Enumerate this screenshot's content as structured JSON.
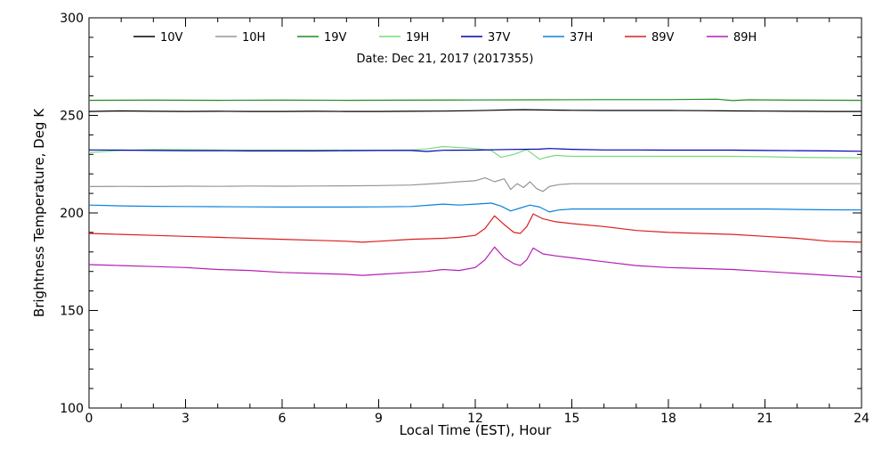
{
  "chart_data": {
    "type": "line",
    "subtitle": "Date: Dec 21, 2017 (2017355)",
    "xlabel": "Local Time (EST), Hour",
    "ylabel": "Brightness Temperature, Deg K",
    "xlim": [
      0,
      24
    ],
    "ylim": [
      100,
      300
    ],
    "xticks": [
      0,
      3,
      6,
      9,
      12,
      15,
      18,
      21,
      24
    ],
    "yticks": [
      100,
      150,
      200,
      250,
      300
    ],
    "grid": false,
    "legend_position": "top",
    "series": [
      {
        "name": "10V",
        "color": "#000000",
        "x": [
          0,
          1,
          2,
          3,
          4,
          5,
          6,
          7,
          8,
          9,
          10,
          11,
          12,
          12.5,
          13,
          13.5,
          14,
          15,
          16,
          17,
          18,
          19,
          20,
          21,
          22,
          23,
          24
        ],
        "y": [
          252.0,
          252.3,
          252.1,
          252.0,
          252.1,
          252.0,
          252.0,
          252.1,
          252.0,
          252.0,
          252.1,
          252.2,
          252.4,
          252.6,
          252.8,
          252.9,
          252.8,
          252.6,
          252.5,
          252.5,
          252.5,
          252.4,
          252.3,
          252.2,
          252.1,
          252.0,
          252.0
        ]
      },
      {
        "name": "10H",
        "color": "#969696",
        "x": [
          0,
          1,
          2,
          3,
          4,
          5,
          6,
          7,
          8,
          9,
          10,
          10.5,
          11,
          11.5,
          12,
          12.3,
          12.6,
          12.9,
          13.1,
          13.3,
          13.5,
          13.7,
          13.9,
          14.1,
          14.3,
          14.6,
          15,
          16,
          17,
          18,
          19,
          20,
          21,
          22,
          23,
          24
        ],
        "y": [
          213.5,
          213.6,
          213.5,
          213.7,
          213.6,
          213.8,
          213.7,
          213.8,
          213.9,
          214.0,
          214.3,
          214.8,
          215.3,
          216.0,
          216.5,
          218.0,
          216.0,
          217.5,
          212.0,
          215.0,
          213.0,
          216.0,
          212.5,
          211.0,
          213.5,
          214.5,
          215.0,
          215.0,
          215.0,
          215.0,
          215.0,
          215.0,
          215.0,
          215.0,
          215.0,
          215.0
        ]
      },
      {
        "name": "19V",
        "color": "#1e8c1e",
        "x": [
          0,
          2,
          4,
          6,
          8,
          10,
          12,
          14,
          16,
          18,
          19.5,
          20,
          20.5,
          22,
          24
        ],
        "y": [
          257.7,
          257.8,
          257.7,
          257.8,
          257.7,
          257.8,
          257.9,
          258.0,
          258.1,
          258.1,
          258.3,
          257.6,
          258.0,
          257.8,
          257.7
        ]
      },
      {
        "name": "19H",
        "color": "#78dc78",
        "x": [
          0,
          1,
          2,
          3,
          4,
          5,
          6,
          7,
          8,
          9,
          10,
          10.5,
          11,
          11.5,
          12,
          12.5,
          12.8,
          13.2,
          13.6,
          14,
          14.2,
          14.5,
          15,
          16,
          17,
          18,
          19,
          20,
          21,
          22,
          23,
          24
        ],
        "y": [
          231.0,
          232.0,
          232.5,
          232.4,
          232.3,
          232.2,
          232.3,
          232.2,
          232.2,
          232.1,
          232.3,
          232.8,
          234.0,
          233.5,
          233.0,
          232.0,
          228.5,
          230.0,
          232.5,
          227.5,
          228.5,
          229.5,
          229.0,
          229.0,
          229.0,
          229.0,
          229.0,
          229.0,
          228.8,
          228.5,
          228.3,
          228.2
        ]
      },
      {
        "name": "37V",
        "color": "#0000b4",
        "x": [
          0,
          1,
          2,
          3,
          4,
          5,
          6,
          7,
          8,
          9,
          10,
          10.5,
          11,
          12,
          13,
          14,
          14.3,
          15,
          16,
          17,
          18,
          19,
          20,
          21,
          22,
          23,
          24
        ],
        "y": [
          232.3,
          232.2,
          232.0,
          231.9,
          231.9,
          231.8,
          231.8,
          231.8,
          231.9,
          232.0,
          232.0,
          231.5,
          232.1,
          232.2,
          232.5,
          232.7,
          233.0,
          232.6,
          232.3,
          232.3,
          232.2,
          232.2,
          232.2,
          232.0,
          231.9,
          231.8,
          231.6
        ]
      },
      {
        "name": "37H",
        "color": "#0a82dc",
        "x": [
          0,
          1,
          2,
          3,
          4,
          5,
          6,
          7,
          8,
          9,
          10,
          10.5,
          11,
          11.5,
          12,
          12.5,
          12.8,
          13.1,
          13.4,
          13.7,
          14,
          14.3,
          14.6,
          15,
          16,
          17,
          18,
          19,
          20,
          21,
          22,
          23,
          24
        ],
        "y": [
          204.0,
          203.6,
          203.4,
          203.3,
          203.2,
          203.1,
          203.0,
          203.0,
          203.0,
          203.1,
          203.3,
          203.9,
          204.5,
          204.0,
          204.5,
          205.0,
          203.5,
          201.0,
          202.5,
          204.0,
          203.0,
          200.5,
          201.5,
          202.0,
          202.0,
          202.0,
          202.0,
          202.0,
          202.0,
          202.0,
          201.8,
          201.6,
          201.5
        ]
      },
      {
        "name": "89V",
        "color": "#dc1e1e",
        "x": [
          0,
          1,
          2,
          3,
          4,
          5,
          6,
          7,
          8,
          8.5,
          9,
          10,
          11,
          11.5,
          12,
          12.3,
          12.6,
          12.9,
          13.2,
          13.4,
          13.6,
          13.8,
          14.1,
          14.5,
          15,
          16,
          17,
          18,
          19,
          20,
          21,
          22,
          23,
          24
        ],
        "y": [
          189.5,
          189.0,
          188.5,
          188.0,
          187.5,
          187.0,
          186.5,
          186.0,
          185.5,
          185.0,
          185.5,
          186.5,
          187.0,
          187.5,
          188.5,
          192.0,
          198.5,
          194.0,
          190.0,
          189.5,
          193.0,
          199.5,
          197.0,
          195.5,
          194.5,
          193.0,
          191.0,
          190.0,
          189.5,
          189.0,
          188.0,
          187.0,
          185.5,
          185.0
        ]
      },
      {
        "name": "89H",
        "color": "#b41eb4",
        "x": [
          0,
          1,
          2,
          3,
          4,
          5,
          6,
          7,
          8,
          8.5,
          9,
          10,
          10.5,
          11,
          11.5,
          12,
          12.3,
          12.6,
          12.9,
          13.2,
          13.4,
          13.6,
          13.8,
          14.1,
          14.5,
          15,
          16,
          17,
          18,
          19,
          20,
          21,
          22,
          23,
          24
        ],
        "y": [
          173.5,
          173.0,
          172.5,
          172.0,
          171.0,
          170.5,
          169.5,
          169.0,
          168.5,
          168.0,
          168.5,
          169.5,
          170.0,
          171.0,
          170.5,
          172.0,
          176.0,
          182.5,
          177.0,
          174.0,
          173.0,
          176.0,
          182.0,
          179.0,
          178.0,
          177.0,
          175.0,
          173.0,
          172.0,
          171.5,
          171.0,
          170.0,
          169.0,
          168.0,
          167.0
        ]
      }
    ]
  }
}
